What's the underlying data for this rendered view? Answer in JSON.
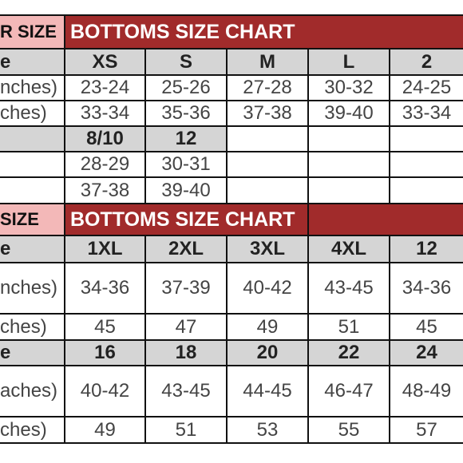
{
  "section1": {
    "left_title": "R SIZE",
    "title": "BOTTOMS SIZE CHART",
    "rows": [
      {
        "label": "e",
        "values": [
          "XS",
          "S",
          "M",
          "L",
          "2"
        ],
        "header": true
      },
      {
        "label": "nches)",
        "values": [
          "23-24",
          "25-26",
          "27-28",
          "30-32",
          "24-25"
        ]
      },
      {
        "label": "ches)",
        "values": [
          "33-34",
          "35-36",
          "37-38",
          "39-40",
          "33-34"
        ]
      },
      {
        "label": "",
        "values": [
          "8/10",
          "12",
          "",
          "",
          ""
        ],
        "header": true
      },
      {
        "label": "",
        "values": [
          "28-29",
          "30-31",
          "",
          "",
          ""
        ]
      },
      {
        "label": "",
        "values": [
          "37-38",
          "39-40",
          "",
          "",
          ""
        ]
      }
    ]
  },
  "section2": {
    "left_title": "SIZE",
    "title": "BOTTOMS SIZE CHART",
    "rows": [
      {
        "label": "e",
        "values": [
          "1XL",
          "2XL",
          "3XL",
          "4XL",
          "12"
        ],
        "header": true
      },
      {
        "label": "nches)",
        "values": [
          "34-36",
          "37-39",
          "40-42",
          "43-45",
          "34-36"
        ]
      },
      {
        "label": "ches)",
        "values": [
          "45",
          "47",
          "49",
          "51",
          "45"
        ]
      },
      {
        "label": "e",
        "values": [
          "16",
          "18",
          "20",
          "22",
          "24"
        ],
        "header": true
      },
      {
        "label": "aches)",
        "values": [
          "40-42",
          "43-45",
          "44-45",
          "46-47",
          "48-49"
        ]
      },
      {
        "label": "ches)",
        "values": [
          "49",
          "51",
          "53",
          "55",
          "57"
        ]
      }
    ]
  }
}
